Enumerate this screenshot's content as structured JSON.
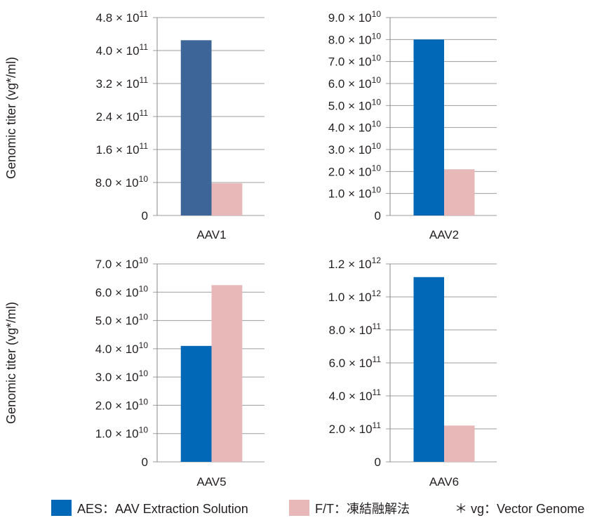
{
  "colors": {
    "aes_aav1": "#3d6597",
    "aes": "#0068b7",
    "ft": "#e8b8b8",
    "grid": "#9d9d9d",
    "axis": "#888888"
  },
  "y_axis_label": "Genomic titer (vg*/ml)",
  "legend": {
    "aes_label": "AES：AAV Extraction Solution",
    "ft_label": "F/T：凍結融解法",
    "note": "＊ vg：Vector Genome"
  },
  "chart_data": [
    {
      "type": "bar",
      "category": "AAV1",
      "series": [
        {
          "name": "AES",
          "value": 425000000000.0
        },
        {
          "name": "F/T",
          "value": 78000000000.0
        }
      ],
      "ylim": [
        0,
        480000000000.0
      ],
      "ticks": [
        {
          "value": 0,
          "mant": "0",
          "exp": ""
        },
        {
          "value": 80000000000.0,
          "mant": "8.0 × 10",
          "exp": "10"
        },
        {
          "value": 160000000000.0,
          "mant": "1.6 × 10",
          "exp": "11"
        },
        {
          "value": 240000000000.0,
          "mant": "2.4 × 10",
          "exp": "11"
        },
        {
          "value": 320000000000.0,
          "mant": "3.2 × 10",
          "exp": "11"
        },
        {
          "value": 400000000000.0,
          "mant": "4.0 × 10",
          "exp": "11"
        },
        {
          "value": 480000000000.0,
          "mant": "4.8 × 10",
          "exp": "11"
        }
      ]
    },
    {
      "type": "bar",
      "category": "AAV2",
      "series": [
        {
          "name": "AES",
          "value": 80000000000.0
        },
        {
          "name": "F/T",
          "value": 21000000000.0
        }
      ],
      "ylim": [
        0,
        90000000000.0
      ],
      "ticks": [
        {
          "value": 0,
          "mant": "0",
          "exp": ""
        },
        {
          "value": 10000000000.0,
          "mant": "1.0 × 10",
          "exp": "10"
        },
        {
          "value": 20000000000.0,
          "mant": "2.0 × 10",
          "exp": "10"
        },
        {
          "value": 30000000000.0,
          "mant": "3.0 × 10",
          "exp": "10"
        },
        {
          "value": 40000000000.0,
          "mant": "4.0 × 10",
          "exp": "10"
        },
        {
          "value": 50000000000.0,
          "mant": "5.0 × 10",
          "exp": "10"
        },
        {
          "value": 60000000000.0,
          "mant": "6.0 × 10",
          "exp": "10"
        },
        {
          "value": 70000000000.0,
          "mant": "7.0 × 10",
          "exp": "10"
        },
        {
          "value": 80000000000.0,
          "mant": "8.0 × 10",
          "exp": "10"
        },
        {
          "value": 90000000000.0,
          "mant": "9.0 × 10",
          "exp": "10"
        }
      ]
    },
    {
      "type": "bar",
      "category": "AAV5",
      "series": [
        {
          "name": "AES",
          "value": 41000000000.0
        },
        {
          "name": "F/T",
          "value": 62500000000.0
        }
      ],
      "ylim": [
        0,
        70000000000.0
      ],
      "ticks": [
        {
          "value": 0,
          "mant": "0",
          "exp": ""
        },
        {
          "value": 10000000000.0,
          "mant": "1.0 × 10",
          "exp": "10"
        },
        {
          "value": 20000000000.0,
          "mant": "2.0 × 10",
          "exp": "10"
        },
        {
          "value": 30000000000.0,
          "mant": "3.0 × 10",
          "exp": "10"
        },
        {
          "value": 40000000000.0,
          "mant": "4.0 × 10",
          "exp": "10"
        },
        {
          "value": 50000000000.0,
          "mant": "5.0 × 10",
          "exp": "10"
        },
        {
          "value": 60000000000.0,
          "mant": "6.0 × 10",
          "exp": "10"
        },
        {
          "value": 70000000000.0,
          "mant": "7.0 × 10",
          "exp": "10"
        }
      ]
    },
    {
      "type": "bar",
      "category": "AAV6",
      "series": [
        {
          "name": "AES",
          "value": 1120000000000.0
        },
        {
          "name": "F/T",
          "value": 220000000000.0
        }
      ],
      "ylim": [
        0,
        1200000000000.0
      ],
      "ticks": [
        {
          "value": 0,
          "mant": "0",
          "exp": ""
        },
        {
          "value": 200000000000.0,
          "mant": "2.0 × 10",
          "exp": "11"
        },
        {
          "value": 400000000000.0,
          "mant": "4.0 × 10",
          "exp": "11"
        },
        {
          "value": 600000000000.0,
          "mant": "6.0 × 10",
          "exp": "11"
        },
        {
          "value": 800000000000.0,
          "mant": "8.0 × 10",
          "exp": "11"
        },
        {
          "value": 1000000000000.0,
          "mant": "1.0 × 10",
          "exp": "12"
        },
        {
          "value": 1200000000000.0,
          "mant": "1.2 × 10",
          "exp": "12"
        }
      ]
    }
  ]
}
